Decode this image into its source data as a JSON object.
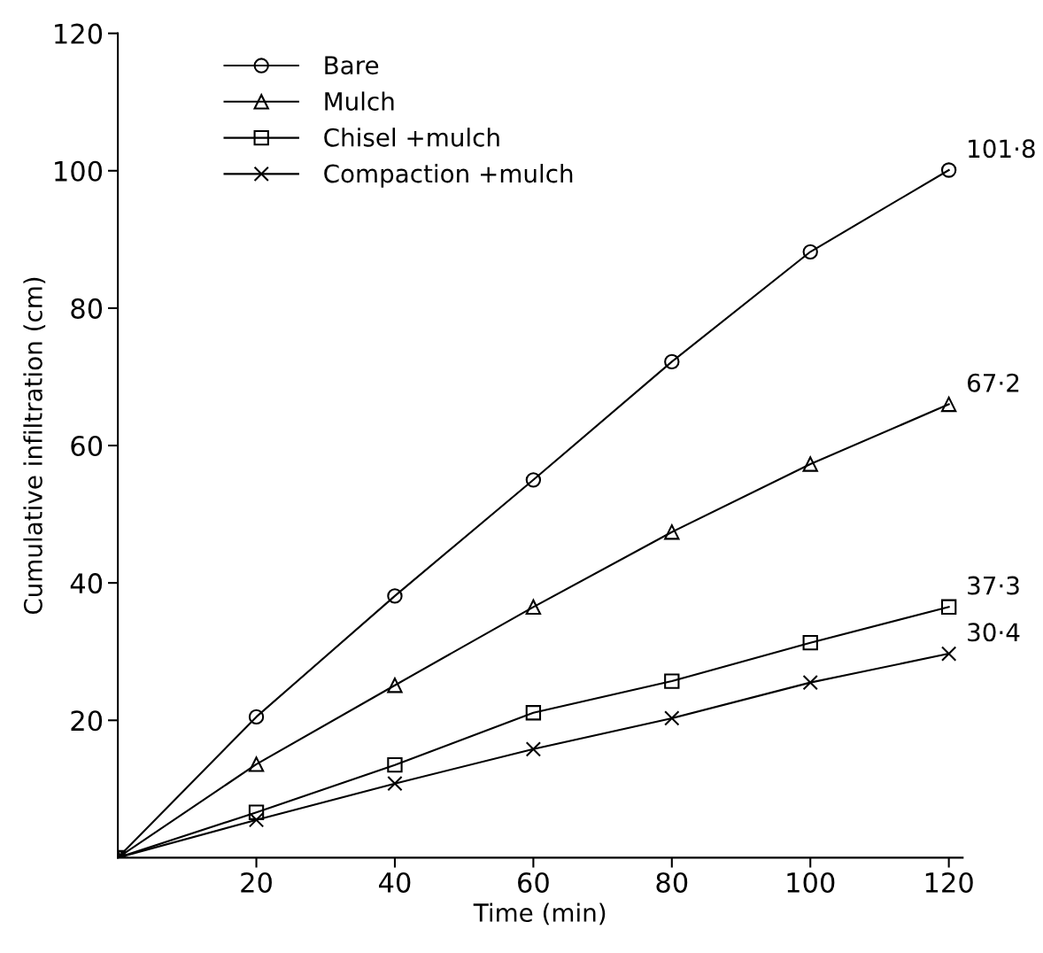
{
  "chart_data": {
    "type": "line",
    "xlabel": "Time (min)",
    "ylabel": "Cumulative infiltration (cm)",
    "xlim": [
      0,
      122
    ],
    "ylim": [
      0,
      120
    ],
    "xticks": [
      20,
      40,
      60,
      80,
      100,
      120
    ],
    "yticks": [
      20,
      40,
      60,
      80,
      100,
      120
    ],
    "grid": false,
    "legend": "top left",
    "series": [
      {
        "name": "Bare",
        "color": "#000000",
        "marker": "circle",
        "x": [
          0,
          20,
          40,
          60,
          80,
          100,
          120
        ],
        "values": [
          0,
          20.5,
          38.1,
          55,
          72.2,
          88.2,
          100.1
        ]
      },
      {
        "name": "Mulch",
        "color": "#000000",
        "marker": "triangle",
        "x": [
          0,
          20,
          40,
          60,
          80,
          100,
          120
        ],
        "values": [
          0,
          13.6,
          25.1,
          36.5,
          47.4,
          57.3,
          66
        ]
      },
      {
        "name": "Chisel +mulch",
        "color": "#000000",
        "marker": "square",
        "x": [
          0,
          20,
          40,
          60,
          80,
          100,
          120
        ],
        "values": [
          0,
          6.6,
          13.5,
          21.1,
          25.7,
          31.3,
          36.5
        ]
      },
      {
        "name": "Compaction +mulch",
        "color": "#000000",
        "marker": "cross",
        "x": [
          0,
          20,
          40,
          60,
          80,
          100,
          120
        ],
        "values": [
          0,
          5.5,
          10.8,
          15.8,
          20.3,
          25.5,
          29.7
        ]
      }
    ],
    "annotations": [
      "101·8",
      "67·2",
      "37·3",
      "30·4"
    ]
  }
}
